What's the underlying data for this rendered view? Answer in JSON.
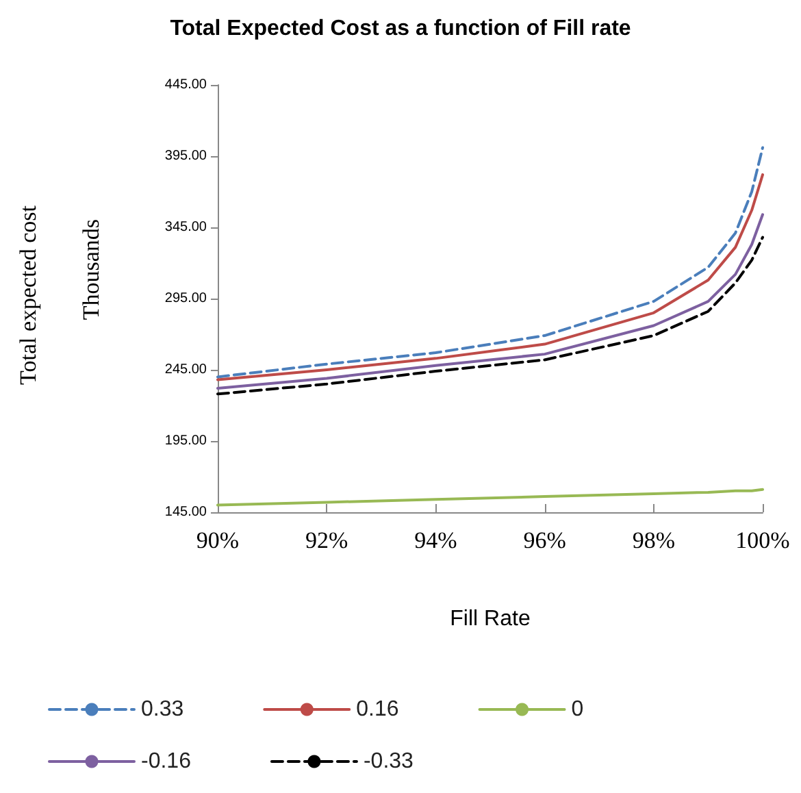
{
  "chart_data": {
    "type": "line",
    "title": "Total Expected Cost as a function of Fill rate",
    "xlabel": "Fill Rate",
    "annotations": [
      "Total expected cost",
      "Thousands"
    ],
    "x": [
      0.9,
      0.92,
      0.94,
      0.96,
      0.98,
      0.99,
      0.995,
      0.998,
      1.0
    ],
    "series": [
      {
        "name": "0.33",
        "color": "#4a7ebb",
        "line_style": "dashed",
        "values": [
          240,
          249,
          257,
          269,
          293,
          317,
          341,
          370,
          401
        ]
      },
      {
        "name": "0.16",
        "color": "#be4b48",
        "line_style": "solid",
        "values": [
          238,
          245,
          253,
          263,
          285,
          308,
          331,
          357,
          382
        ]
      },
      {
        "name": "0",
        "color": "#98b954",
        "line_style": "solid",
        "values": [
          150,
          152,
          154,
          156,
          158,
          159,
          160,
          160,
          161
        ]
      },
      {
        "name": "-0.16",
        "color": "#7d60a0",
        "line_style": "solid",
        "values": [
          232,
          239,
          248,
          256,
          276,
          293,
          312,
          333,
          354
        ]
      },
      {
        "name": "-0.33",
        "color": "#000000",
        "line_style": "dashed",
        "values": [
          228,
          235,
          244,
          252,
          269,
          286,
          306,
          322,
          338
        ]
      }
    ],
    "xlim": [
      0.9,
      1.0
    ],
    "xticks": [
      {
        "value": 0.9,
        "label": "90%"
      },
      {
        "value": 0.92,
        "label": "92%"
      },
      {
        "value": 0.94,
        "label": "94%"
      },
      {
        "value": 0.96,
        "label": "96%"
      },
      {
        "value": 0.98,
        "label": "98%"
      },
      {
        "value": 1.0,
        "label": "100%"
      }
    ],
    "ylim": [
      145,
      445
    ],
    "yticks": [
      {
        "value": 145,
        "label": "145.00"
      },
      {
        "value": 195,
        "label": "195.00"
      },
      {
        "value": 245,
        "label": "245.00"
      },
      {
        "value": 295,
        "label": "295.00"
      },
      {
        "value": 345,
        "label": "345.00"
      },
      {
        "value": 395,
        "label": "395.00"
      },
      {
        "value": 445,
        "label": "445.00"
      }
    ],
    "grid": false,
    "legend": "bottom",
    "marker": "none"
  }
}
